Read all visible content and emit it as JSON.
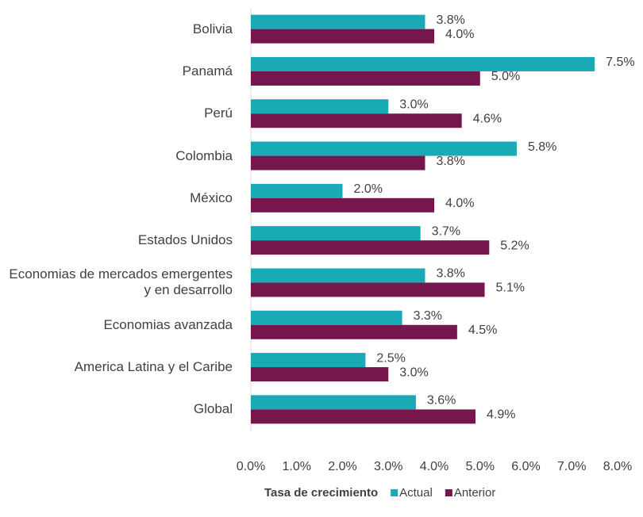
{
  "chart_data": {
    "type": "hbar",
    "categories": [
      "Bolivia",
      "Panamá",
      "Perú",
      "Colombia",
      "México",
      "Estados Unidos",
      "Economias de mercados emergentes y en desarrollo",
      "Economias avanzada",
      "America Latina y el Caribe",
      "Global"
    ],
    "series": [
      {
        "name": "Actual",
        "color": "#1aaab5",
        "values": [
          3.8,
          7.5,
          3.0,
          5.8,
          2.0,
          3.7,
          3.8,
          3.3,
          2.5,
          3.6
        ],
        "value_labels": [
          "3.8%",
          "7.5%",
          "3.0%",
          "5.8%",
          "2.0%",
          "3.7%",
          "3.8%",
          "3.3%",
          "2.5%",
          "3.6%"
        ]
      },
      {
        "name": "Anterior",
        "color": "#75174c",
        "values": [
          4.0,
          5.0,
          4.6,
          3.8,
          4.0,
          5.2,
          5.1,
          4.5,
          3.0,
          4.9
        ],
        "value_labels": [
          "4.0%",
          "5.0%",
          "4.6%",
          "3.8%",
          "4.0%",
          "5.2%",
          "5.1%",
          "4.5%",
          "3.0%",
          "4.9%"
        ]
      }
    ],
    "xlim": [
      0,
      8
    ],
    "xticks": [
      {
        "value": 0,
        "label": "0.0%"
      },
      {
        "value": 1,
        "label": "1.0%"
      },
      {
        "value": 2,
        "label": "2.0%"
      },
      {
        "value": 3,
        "label": "3.0%"
      },
      {
        "value": 4,
        "label": "4.0%"
      },
      {
        "value": 5,
        "label": "5.0%"
      },
      {
        "value": 6,
        "label": "6.0%"
      },
      {
        "value": 7,
        "label": "7.0%"
      },
      {
        "value": 8,
        "label": "8.0%"
      }
    ],
    "legend_title": "Tasa de crecimiento",
    "legend": "bottom",
    "grid": false
  }
}
